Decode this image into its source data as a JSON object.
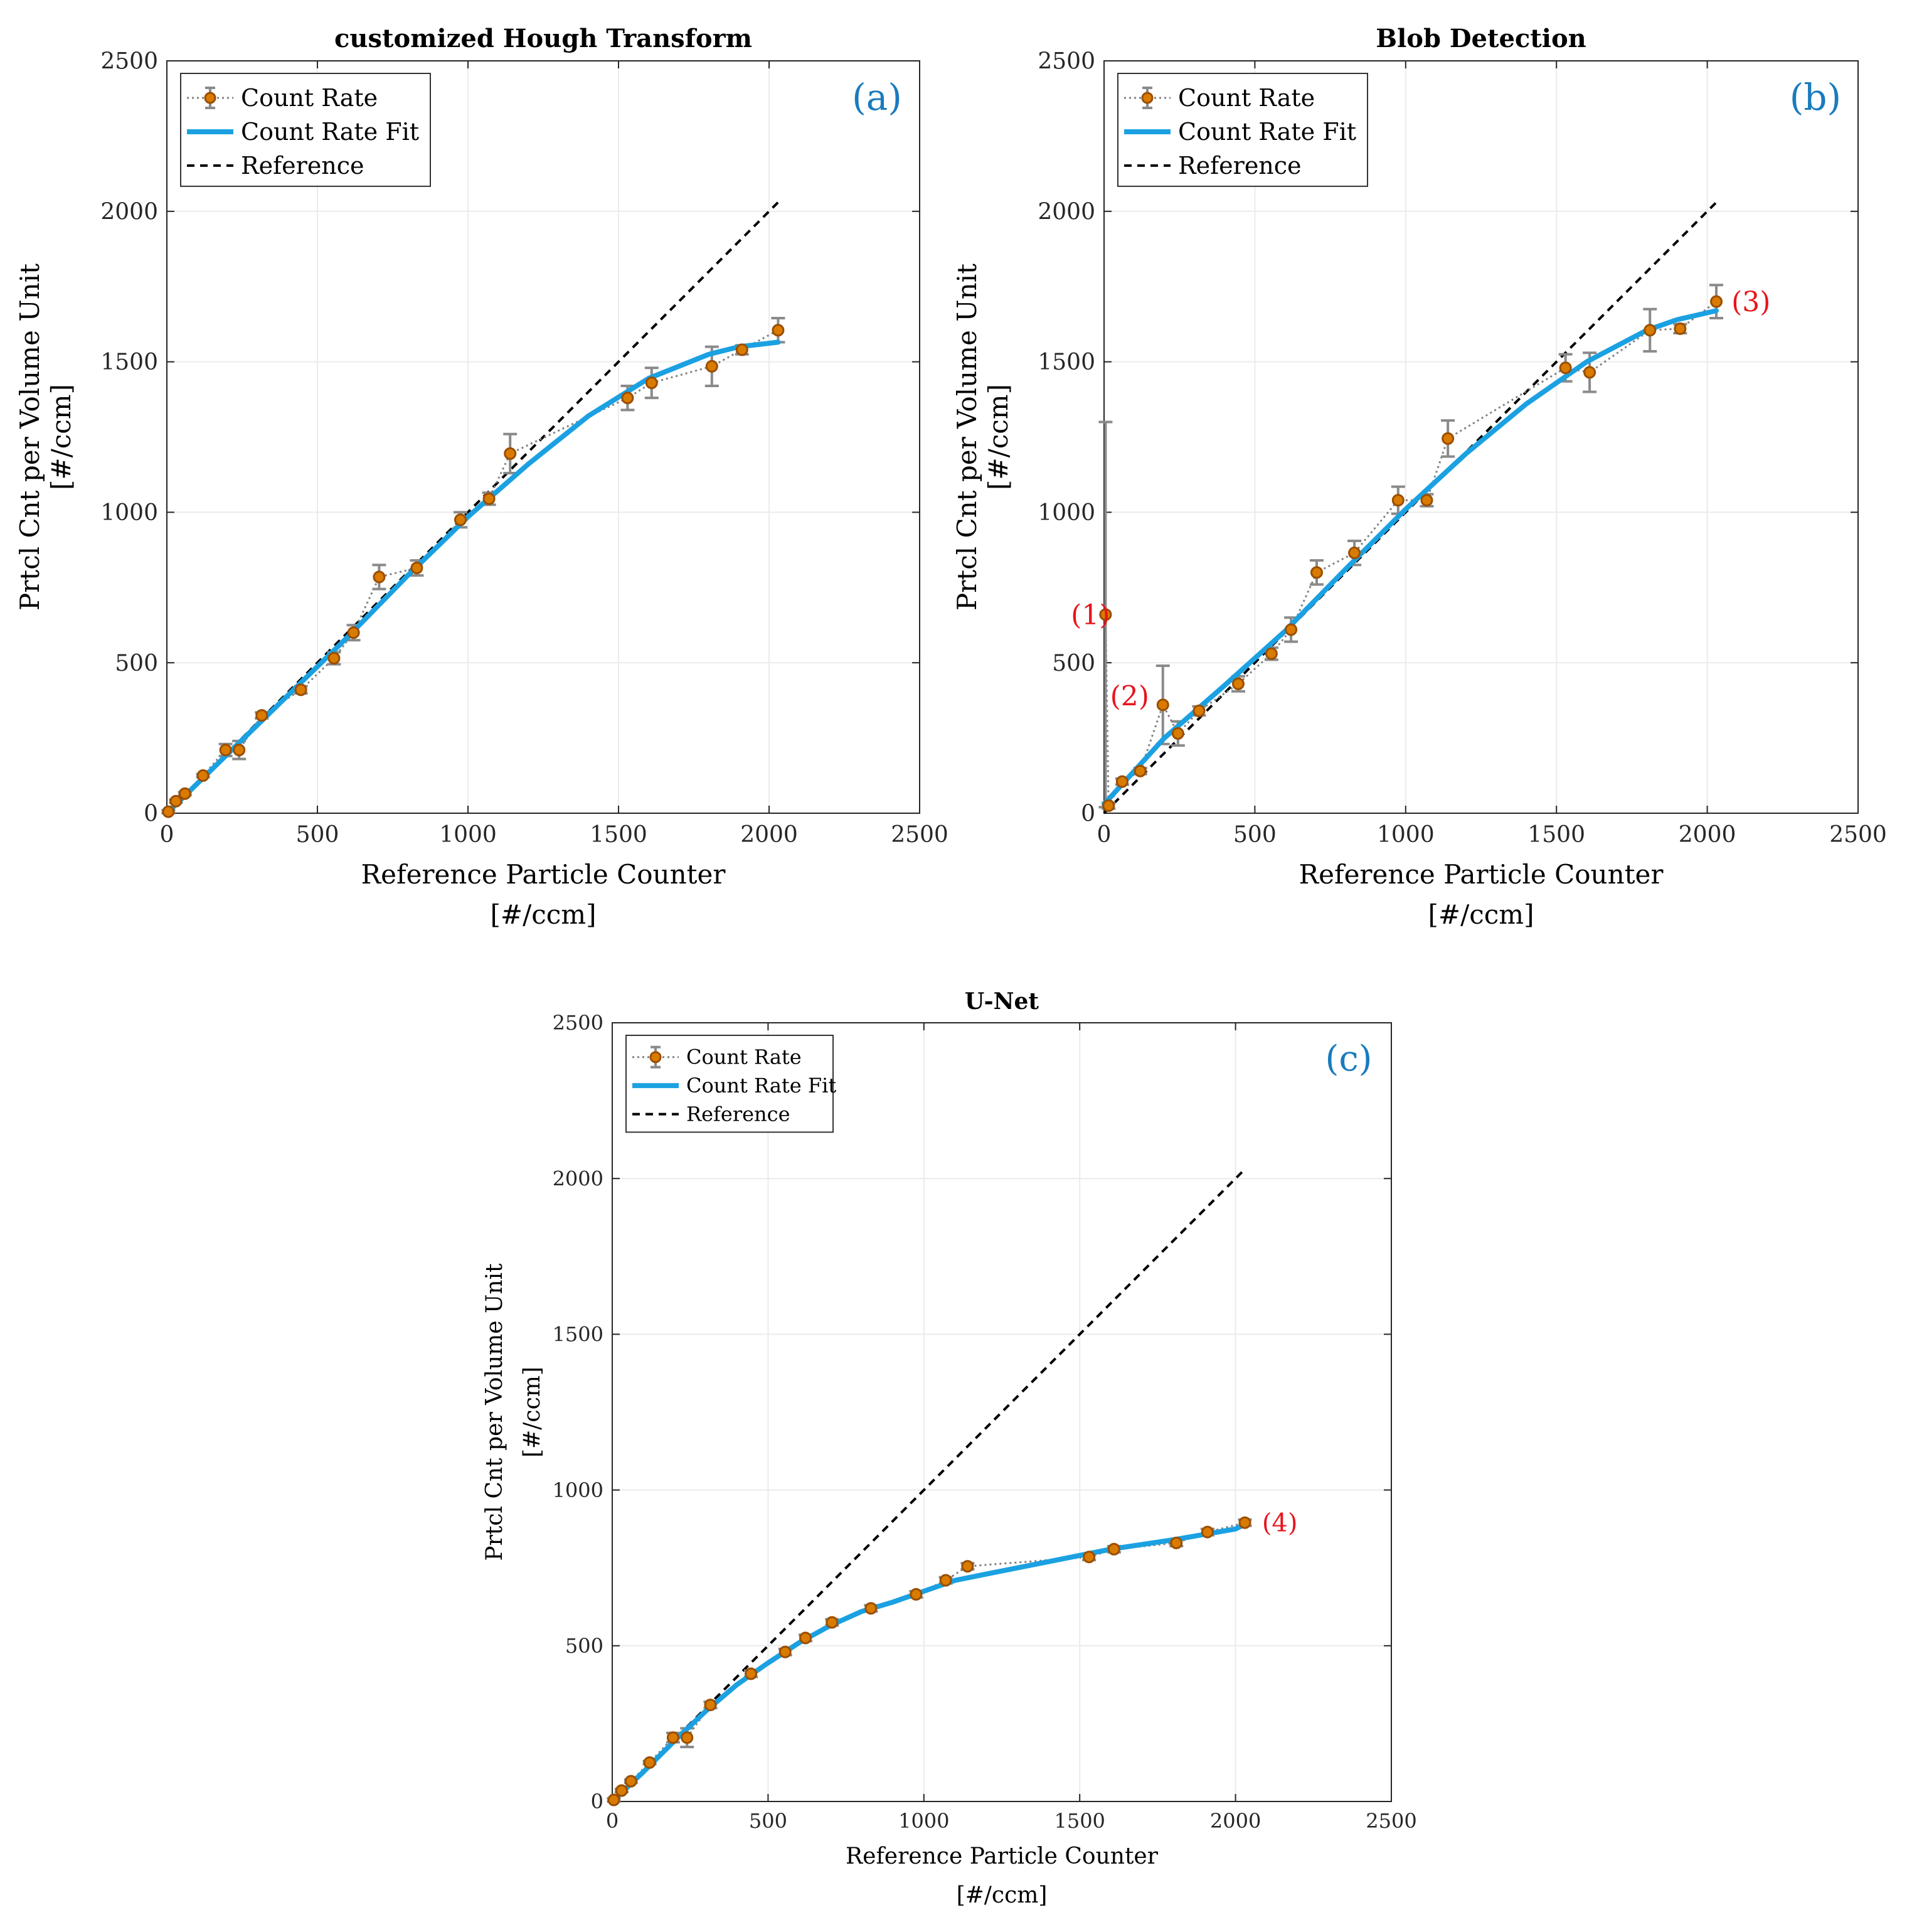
{
  "chart_data": [
    {
      "id": "a",
      "type": "scatter",
      "title": "customized Hough Transform",
      "panel_label": "(a)",
      "xlabel": "Reference Particle Counter",
      "xlabel2": "[#/ccm]",
      "ylabel": "Prtcl Cnt per Volume Unit",
      "ylabel2": "[#/ccm]",
      "xlim": [
        0,
        2500
      ],
      "ylim": [
        0,
        2500
      ],
      "xticks": [
        0,
        500,
        1000,
        1500,
        2000,
        2500
      ],
      "yticks": [
        0,
        500,
        1000,
        1500,
        2000,
        2500
      ],
      "grid": true,
      "legend": [
        "Count Rate",
        "Count Rate Fit",
        "Reference"
      ],
      "legend_position": "top-left",
      "series": [
        {
          "name": "Count Rate",
          "points": [
            {
              "x": 5,
              "y": 5,
              "err": 5
            },
            {
              "x": 30,
              "y": 40,
              "err": 5
            },
            {
              "x": 60,
              "y": 65,
              "err": 5
            },
            {
              "x": 120,
              "y": 125,
              "err": 5
            },
            {
              "x": 195,
              "y": 210,
              "err": 20
            },
            {
              "x": 240,
              "y": 210,
              "err": 30
            },
            {
              "x": 315,
              "y": 325,
              "err": 10
            },
            {
              "x": 445,
              "y": 410,
              "err": 12
            },
            {
              "x": 555,
              "y": 515,
              "err": 20
            },
            {
              "x": 620,
              "y": 600,
              "err": 25
            },
            {
              "x": 705,
              "y": 785,
              "err": 40
            },
            {
              "x": 830,
              "y": 815,
              "err": 25
            },
            {
              "x": 975,
              "y": 975,
              "err": 25
            },
            {
              "x": 1070,
              "y": 1045,
              "err": 20
            },
            {
              "x": 1140,
              "y": 1195,
              "err": 65
            },
            {
              "x": 1530,
              "y": 1380,
              "err": 40
            },
            {
              "x": 1610,
              "y": 1430,
              "err": 50
            },
            {
              "x": 1810,
              "y": 1485,
              "err": 65
            },
            {
              "x": 1910,
              "y": 1540,
              "err": 15
            },
            {
              "x": 2030,
              "y": 1605,
              "err": 40
            }
          ]
        },
        {
          "name": "Count Rate Fit",
          "x": [
            0,
            200,
            400,
            600,
            800,
            1000,
            1200,
            1400,
            1600,
            1800,
            1900,
            2030
          ],
          "y": [
            0,
            195,
            390,
            585,
            790,
            985,
            1160,
            1320,
            1445,
            1525,
            1550,
            1565
          ]
        },
        {
          "name": "Reference",
          "x": [
            0,
            2030
          ],
          "y": [
            0,
            2030
          ]
        }
      ],
      "annotations": []
    },
    {
      "id": "b",
      "type": "scatter",
      "title": "Blob Detection",
      "panel_label": "(b)",
      "xlabel": "Reference Particle Counter",
      "xlabel2": "[#/ccm]",
      "ylabel": "Prtcl Cnt per Volume Unit",
      "ylabel2": "[#/ccm]",
      "xlim": [
        0,
        2500
      ],
      "ylim": [
        0,
        2500
      ],
      "xticks": [
        0,
        500,
        1000,
        1500,
        2000,
        2500
      ],
      "yticks": [
        0,
        500,
        1000,
        1500,
        2000,
        2500
      ],
      "grid": true,
      "legend": [
        "Count Rate",
        "Count Rate Fit",
        "Reference"
      ],
      "legend_position": "top-left",
      "series": [
        {
          "name": "Count Rate",
          "points": [
            {
              "x": 5,
              "y": 660,
              "err": 640
            },
            {
              "x": 15,
              "y": 25,
              "err": 10
            },
            {
              "x": 60,
              "y": 105,
              "err": 10
            },
            {
              "x": 120,
              "y": 140,
              "err": 10
            },
            {
              "x": 195,
              "y": 360,
              "err": 130
            },
            {
              "x": 245,
              "y": 265,
              "err": 40
            },
            {
              "x": 315,
              "y": 340,
              "err": 15
            },
            {
              "x": 445,
              "y": 430,
              "err": 25
            },
            {
              "x": 555,
              "y": 530,
              "err": 20
            },
            {
              "x": 620,
              "y": 610,
              "err": 40
            },
            {
              "x": 705,
              "y": 800,
              "err": 40
            },
            {
              "x": 830,
              "y": 865,
              "err": 40
            },
            {
              "x": 975,
              "y": 1040,
              "err": 45
            },
            {
              "x": 1070,
              "y": 1040,
              "err": 20
            },
            {
              "x": 1140,
              "y": 1245,
              "err": 60
            },
            {
              "x": 1530,
              "y": 1480,
              "err": 45
            },
            {
              "x": 1610,
              "y": 1465,
              "err": 65
            },
            {
              "x": 1810,
              "y": 1605,
              "err": 70
            },
            {
              "x": 1910,
              "y": 1610,
              "err": 15
            },
            {
              "x": 2030,
              "y": 1700,
              "err": 55
            }
          ]
        },
        {
          "name": "Count Rate Fit",
          "x": [
            0,
            200,
            400,
            600,
            800,
            1000,
            1200,
            1400,
            1600,
            1800,
            1900,
            2030
          ],
          "y": [
            30,
            250,
            425,
            605,
            810,
            1010,
            1195,
            1360,
            1500,
            1605,
            1640,
            1670
          ]
        },
        {
          "name": "Reference",
          "x": [
            0,
            2030
          ],
          "y": [
            0,
            2030
          ]
        }
      ],
      "annotations": [
        {
          "text": "(1)",
          "x": -110,
          "y": 660
        },
        {
          "text": "(2)",
          "x": 20,
          "y": 390
        },
        {
          "text": "(3)",
          "x": 2080,
          "y": 1700
        }
      ]
    },
    {
      "id": "c",
      "type": "scatter",
      "title": "U-Net",
      "panel_label": "(c)",
      "xlabel": "Reference Particle Counter",
      "xlabel2": "[#/ccm]",
      "ylabel": "Prtcl Cnt per Volume Unit",
      "ylabel2": "[#/ccm]",
      "xlim": [
        0,
        2500
      ],
      "ylim": [
        0,
        2500
      ],
      "xticks": [
        0,
        500,
        1000,
        1500,
        2000,
        2500
      ],
      "yticks": [
        0,
        500,
        1000,
        1500,
        2000,
        2500
      ],
      "grid": true,
      "legend": [
        "Count Rate",
        "Count Rate Fit",
        "Reference"
      ],
      "legend_position": "top-left",
      "series": [
        {
          "name": "Count Rate",
          "points": [
            {
              "x": 5,
              "y": 5,
              "err": 5
            },
            {
              "x": 30,
              "y": 35,
              "err": 5
            },
            {
              "x": 60,
              "y": 65,
              "err": 5
            },
            {
              "x": 120,
              "y": 125,
              "err": 5
            },
            {
              "x": 195,
              "y": 205,
              "err": 15
            },
            {
              "x": 240,
              "y": 205,
              "err": 30
            },
            {
              "x": 315,
              "y": 310,
              "err": 10
            },
            {
              "x": 445,
              "y": 410,
              "err": 10
            },
            {
              "x": 555,
              "y": 480,
              "err": 10
            },
            {
              "x": 620,
              "y": 525,
              "err": 10
            },
            {
              "x": 705,
              "y": 575,
              "err": 10
            },
            {
              "x": 830,
              "y": 620,
              "err": 10
            },
            {
              "x": 975,
              "y": 665,
              "err": 10
            },
            {
              "x": 1070,
              "y": 710,
              "err": 10
            },
            {
              "x": 1140,
              "y": 755,
              "err": 10
            },
            {
              "x": 1530,
              "y": 785,
              "err": 10
            },
            {
              "x": 1610,
              "y": 810,
              "err": 10
            },
            {
              "x": 1810,
              "y": 830,
              "err": 10
            },
            {
              "x": 1910,
              "y": 865,
              "err": 10
            },
            {
              "x": 2030,
              "y": 895,
              "err": 10
            }
          ]
        },
        {
          "name": "Count Rate Fit",
          "x": [
            0,
            100,
            200,
            300,
            400,
            500,
            600,
            700,
            800,
            900,
            1000,
            1100,
            1200,
            1400,
            1600,
            1800,
            2000,
            2030
          ],
          "y": [
            0,
            95,
            195,
            290,
            375,
            445,
            510,
            565,
            610,
            640,
            675,
            710,
            730,
            770,
            810,
            840,
            875,
            890
          ]
        },
        {
          "name": "Reference",
          "x": [
            0,
            2030
          ],
          "y": [
            0,
            2030
          ]
        }
      ],
      "annotations": [
        {
          "text": "(4)",
          "x": 2085,
          "y": 895
        }
      ]
    }
  ],
  "colors": {
    "marker_fill": "#d97b00",
    "marker_edge": "#9a4e00",
    "dotted_line": "#808080",
    "errorbar": "#8a8a8a",
    "fit": "#1ba1e2",
    "reference": "#000000",
    "panel_label": "#1a7bbd",
    "annotation": "#e8141c",
    "grid": "#ebebeb",
    "axis": "#262626"
  }
}
